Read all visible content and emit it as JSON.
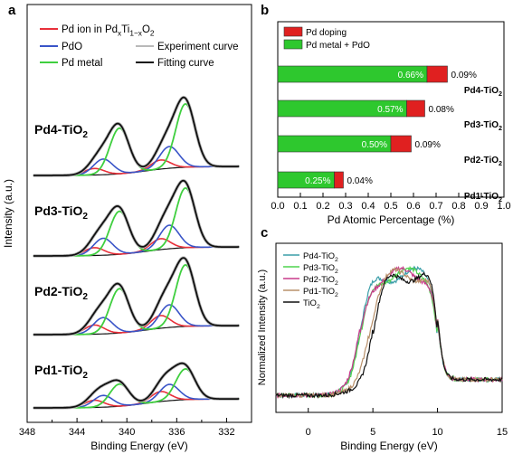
{
  "panels": [
    {
      "id": "a",
      "letter": "a",
      "type": "line",
      "xlabel": "Binding Energy (eV)",
      "ylabel": "Intensity (a.u.)",
      "xlim": [
        348,
        330
      ],
      "xticks": [
        "348",
        "344",
        "340",
        "336",
        "332"
      ],
      "legend": [
        {
          "label": "Pd ion in PdxTi1−xO2",
          "color": "#e8303a"
        },
        {
          "label": "PdO",
          "color": "#3a55c8"
        },
        {
          "label": "Pd metal",
          "color": "#3fcf3f"
        },
        {
          "label": "Experiment curve",
          "color": "#b9b9b9"
        },
        {
          "label": "Fitting curve",
          "color": "#111111"
        }
      ],
      "samples": [
        {
          "label": "Pd4-TiO2",
          "ion_amp": 10,
          "pdo_amp": 24,
          "metal_amp": 70
        },
        {
          "label": "Pd3-TiO2",
          "ion_amp": 12,
          "pdo_amp": 26,
          "metal_amp": 66
        },
        {
          "label": "Pd2-TiO2",
          "ion_amp": 14,
          "pdo_amp": 25,
          "metal_amp": 68
        },
        {
          "label": "Pd1-TiO2",
          "ion_amp": 11,
          "pdo_amp": 18,
          "metal_amp": 34
        }
      ],
      "peak_positions": {
        "ion": [
          337.3,
          342.6
        ],
        "pdo": [
          336.6,
          341.9
        ],
        "metal": [
          335.3,
          340.6
        ]
      }
    },
    {
      "id": "b",
      "letter": "b",
      "type": "bar",
      "orientation": "horizontal",
      "xlabel": "Pd Atomic Percentage (%)",
      "xlim": [
        0,
        1.0
      ],
      "xticks": [
        "0.0",
        "0.1",
        "0.2",
        "0.3",
        "0.4",
        "0.5",
        "0.6",
        "0.7",
        "0.8",
        "0.9",
        "1.0"
      ],
      "legend": [
        {
          "label": "Pd doping",
          "color": "#e02020"
        },
        {
          "label": "Pd metal + PdO",
          "color": "#2ec82e"
        }
      ],
      "categories": [
        "Pd4-TiO2",
        "Pd3-TiO2",
        "Pd2-TiO2",
        "Pd1-TiO2"
      ],
      "series": [
        {
          "name": "Pd metal + PdO",
          "values": [
            0.66,
            0.57,
            0.5,
            0.25
          ],
          "labels": [
            "0.66%",
            "0.57%",
            "0.50%",
            "0.25%"
          ]
        },
        {
          "name": "Pd doping",
          "values": [
            0.09,
            0.08,
            0.09,
            0.04
          ],
          "labels": [
            "0.09%",
            "0.08%",
            "0.09%",
            "0.04%"
          ]
        }
      ]
    },
    {
      "id": "c",
      "letter": "c",
      "type": "line",
      "xlabel": "Binding Energy (eV)",
      "ylabel": "Normalized Intensity (a.u.)",
      "xlim": [
        -2.5,
        15
      ],
      "xticks": [
        "0",
        "5",
        "10",
        "15"
      ],
      "xtick_values": [
        0,
        5,
        10,
        15
      ],
      "series": [
        {
          "name": "Pd4-TiO2",
          "color": "#3a9ea8",
          "onset": 4.0
        },
        {
          "name": "Pd3-TiO2",
          "color": "#4fd34f",
          "onset": 4.1
        },
        {
          "name": "Pd2-TiO2",
          "color": "#c83a8a",
          "onset": 4.0
        },
        {
          "name": "Pd1-TiO2",
          "color": "#b8906a",
          "onset": 4.7
        },
        {
          "name": "TiO2",
          "color": "#111111",
          "onset": 5.0
        }
      ]
    }
  ]
}
